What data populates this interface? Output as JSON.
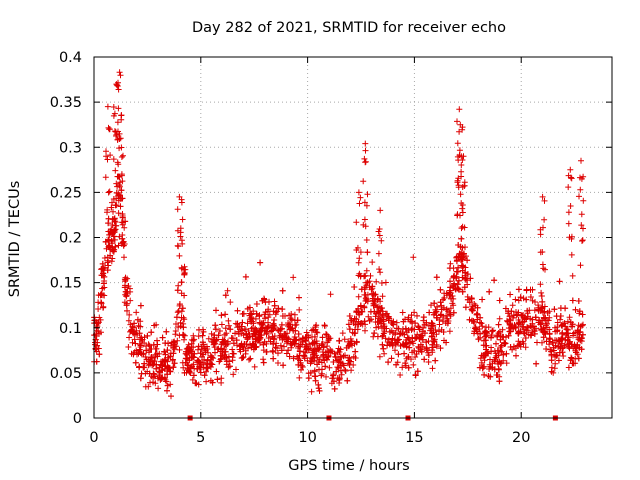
{
  "chart_data": {
    "type": "scatter",
    "title": "Day 282 of 2021, SRMTID for receiver echo",
    "xlabel": "GPS time / hours",
    "ylabel": "SRMTID / TECUs",
    "xlim": [
      0,
      24.25
    ],
    "ylim": [
      0,
      0.4
    ],
    "xticks": [
      0,
      5,
      10,
      15,
      20
    ],
    "xtick_labels": [
      "0",
      "5",
      "10",
      "15",
      "20"
    ],
    "yticks": [
      0,
      0.05,
      0.1,
      0.15,
      0.2,
      0.25,
      0.3,
      0.35,
      0.4
    ],
    "ytick_labels": [
      "0",
      "0.05",
      "0.1",
      "0.15",
      "0.2",
      "0.25",
      "0.3",
      "0.35",
      "0.4"
    ],
    "grid": true,
    "marker": "plus",
    "color": "#dd0000",
    "gap_markers_x": [
      4.5,
      11.0,
      14.7,
      21.6
    ],
    "envelope": [
      {
        "x": 0.0,
        "y": 0.08
      },
      {
        "x": 0.3,
        "y": 0.12
      },
      {
        "x": 0.6,
        "y": 0.19
      },
      {
        "x": 0.9,
        "y": 0.2
      },
      {
        "x": 1.2,
        "y": 0.28
      },
      {
        "x": 1.5,
        "y": 0.14
      },
      {
        "x": 1.8,
        "y": 0.09
      },
      {
        "x": 2.4,
        "y": 0.07
      },
      {
        "x": 3.0,
        "y": 0.055
      },
      {
        "x": 3.6,
        "y": 0.06
      },
      {
        "x": 4.0,
        "y": 0.11
      },
      {
        "x": 4.4,
        "y": 0.07
      },
      {
        "x": 5.0,
        "y": 0.07
      },
      {
        "x": 6.0,
        "y": 0.08
      },
      {
        "x": 7.0,
        "y": 0.09
      },
      {
        "x": 8.0,
        "y": 0.1
      },
      {
        "x": 9.0,
        "y": 0.095
      },
      {
        "x": 10.0,
        "y": 0.075
      },
      {
        "x": 11.0,
        "y": 0.065
      },
      {
        "x": 11.7,
        "y": 0.06
      },
      {
        "x": 12.4,
        "y": 0.11
      },
      {
        "x": 12.8,
        "y": 0.14
      },
      {
        "x": 13.5,
        "y": 0.1
      },
      {
        "x": 14.3,
        "y": 0.09
      },
      {
        "x": 15.0,
        "y": 0.085
      },
      {
        "x": 16.0,
        "y": 0.095
      },
      {
        "x": 16.8,
        "y": 0.14
      },
      {
        "x": 17.2,
        "y": 0.18
      },
      {
        "x": 17.8,
        "y": 0.11
      },
      {
        "x": 18.5,
        "y": 0.07
      },
      {
        "x": 19.0,
        "y": 0.075
      },
      {
        "x": 19.6,
        "y": 0.1
      },
      {
        "x": 20.5,
        "y": 0.11
      },
      {
        "x": 21.0,
        "y": 0.11
      },
      {
        "x": 21.5,
        "y": 0.08
      },
      {
        "x": 22.0,
        "y": 0.095
      },
      {
        "x": 22.5,
        "y": 0.08
      },
      {
        "x": 22.9,
        "y": 0.1
      }
    ],
    "peaks": [
      {
        "x": 0.65,
        "y": 0.345
      },
      {
        "x": 1.05,
        "y": 0.37
      },
      {
        "x": 1.2,
        "y": 0.383
      },
      {
        "x": 1.25,
        "y": 0.31
      },
      {
        "x": 4.0,
        "y": 0.245
      },
      {
        "x": 4.15,
        "y": 0.22
      },
      {
        "x": 12.7,
        "y": 0.304
      },
      {
        "x": 12.4,
        "y": 0.25
      },
      {
        "x": 13.4,
        "y": 0.23
      },
      {
        "x": 17.1,
        "y": 0.342
      },
      {
        "x": 17.15,
        "y": 0.325
      },
      {
        "x": 17.3,
        "y": 0.29
      },
      {
        "x": 21.0,
        "y": 0.245
      },
      {
        "x": 22.8,
        "y": 0.285
      },
      {
        "x": 22.3,
        "y": 0.275
      }
    ],
    "point_count": 3000
  }
}
